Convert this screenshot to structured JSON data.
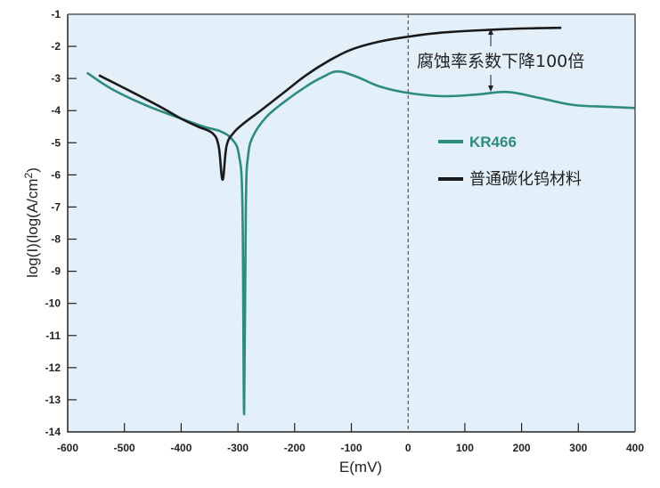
{
  "chart_data": {
    "type": "line",
    "title": "",
    "xlabel": "E(mV)",
    "ylabel": "log(I)(log(A/cm",
    "ylabel_sup": "2",
    "ylabel_tail": ")",
    "xlim": [
      -600,
      400
    ],
    "ylim": [
      -14,
      -1
    ],
    "x_ticks": [
      "-600",
      "-500",
      "-400",
      "-300",
      "-200",
      "-100",
      "0",
      "100",
      "200",
      "300",
      "400"
    ],
    "y_ticks": [
      "-1",
      "-2",
      "-3",
      "-4",
      "-5",
      "-6",
      "-7",
      "-8",
      "-9",
      "-10",
      "-11",
      "-12",
      "-13",
      "-14"
    ],
    "grid": false,
    "reference_line": {
      "x": 0,
      "style": "dashed"
    },
    "annotation": "腐蚀率系数下降100倍",
    "legend_position": "inside-right",
    "series": [
      {
        "name": "KR466",
        "color": "#2e8b80",
        "points": [
          [
            -566,
            -2.82
          ],
          [
            -520,
            -3.35
          ],
          [
            -460,
            -3.85
          ],
          [
            -400,
            -4.25
          ],
          [
            -360,
            -4.5
          ],
          [
            -330,
            -4.65
          ],
          [
            -310,
            -4.9
          ],
          [
            -298,
            -5.4
          ],
          [
            -292,
            -7.0
          ],
          [
            -289,
            -13.45
          ],
          [
            -286,
            -7.0
          ],
          [
            -282,
            -5.4
          ],
          [
            -272,
            -4.75
          ],
          [
            -250,
            -4.2
          ],
          [
            -220,
            -3.75
          ],
          [
            -180,
            -3.25
          ],
          [
            -150,
            -2.95
          ],
          [
            -124,
            -2.78
          ],
          [
            -90,
            -2.95
          ],
          [
            -50,
            -3.25
          ],
          [
            0,
            -3.45
          ],
          [
            60,
            -3.55
          ],
          [
            120,
            -3.5
          ],
          [
            175,
            -3.42
          ],
          [
            230,
            -3.6
          ],
          [
            290,
            -3.82
          ],
          [
            350,
            -3.88
          ],
          [
            400,
            -3.92
          ]
        ]
      },
      {
        "name": "普通碳化钨材料",
        "color": "#1a1a1a",
        "points": [
          [
            -545,
            -2.9
          ],
          [
            -500,
            -3.3
          ],
          [
            -440,
            -3.85
          ],
          [
            -400,
            -4.25
          ],
          [
            -370,
            -4.5
          ],
          [
            -345,
            -4.7
          ],
          [
            -334,
            -5.1
          ],
          [
            -327,
            -6.15
          ],
          [
            -320,
            -5.1
          ],
          [
            -308,
            -4.7
          ],
          [
            -290,
            -4.4
          ],
          [
            -260,
            -4.0
          ],
          [
            -220,
            -3.45
          ],
          [
            -180,
            -2.9
          ],
          [
            -140,
            -2.45
          ],
          [
            -100,
            -2.1
          ],
          [
            -50,
            -1.85
          ],
          [
            0,
            -1.7
          ],
          [
            60,
            -1.57
          ],
          [
            150,
            -1.48
          ],
          [
            210,
            -1.44
          ],
          [
            270,
            -1.42
          ]
        ]
      }
    ]
  }
}
